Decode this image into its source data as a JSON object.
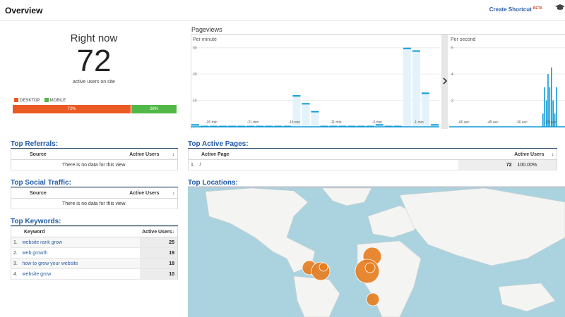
{
  "header": {
    "title": "Overview",
    "shortcut_label": "Create Shortcut",
    "shortcut_badge": "BETA"
  },
  "right_now": {
    "title": "Right now",
    "value": "72",
    "subtitle": "active users on site",
    "legend": [
      {
        "label": "DESKTOP",
        "color": "#ec5a24"
      },
      {
        "label": "MOBILE",
        "color": "#51b747"
      }
    ],
    "split": [
      {
        "label": "72%",
        "fraction": 0.72,
        "color": "#ec5a24"
      },
      {
        "label": "28%",
        "fraction": 0.28,
        "color": "#51b747"
      }
    ]
  },
  "pageviews": {
    "title": "Pageviews",
    "per_minute": {
      "label": "Per minute",
      "y_ticks": [
        "30",
        "20",
        "10"
      ],
      "x_ticks": [
        "-26 min",
        "-21 min",
        "-16 min",
        "-11 min",
        "-6 min",
        "-1 min"
      ],
      "ylim": [
        0,
        35
      ],
      "values": [
        1,
        0,
        0,
        0,
        0,
        0,
        0,
        0,
        0,
        0,
        0,
        12,
        9,
        6,
        0,
        0,
        0,
        0,
        0,
        0,
        1,
        0,
        0,
        30,
        29,
        13,
        1
      ]
    },
    "per_second": {
      "label": "Per second",
      "y_ticks": [
        "6",
        "4",
        "2"
      ],
      "x_ticks": [
        "-60 sec",
        "-45 sec",
        "-30 sec",
        "-15 sec"
      ],
      "ylim": [
        0,
        7
      ],
      "values": [
        1,
        3,
        2,
        4,
        3,
        4.5,
        2,
        1,
        3
      ]
    }
  },
  "top_referrals": {
    "title": "Top Referrals:",
    "columns": [
      "Source",
      "Active Users"
    ],
    "empty": "There is no data for this view."
  },
  "top_social": {
    "title": "Top Social Traffic:",
    "columns": [
      "Source",
      "Active Users"
    ],
    "empty": "There is no data for this view."
  },
  "top_keywords": {
    "title": "Top Keywords:",
    "columns": [
      "Keyword",
      "Active Users"
    ],
    "rows": [
      {
        "n": "1.",
        "keyword": "website rank grow",
        "users": "25"
      },
      {
        "n": "2.",
        "keyword": "web growth",
        "users": "19"
      },
      {
        "n": "3.",
        "keyword": "how to grow your website",
        "users": "18"
      },
      {
        "n": "4.",
        "keyword": "website grow",
        "users": "10"
      }
    ]
  },
  "top_pages": {
    "title": "Top Active Pages:",
    "columns": [
      "Active Page",
      "Active Users"
    ],
    "rows": [
      {
        "n": "1.",
        "page": "/",
        "users": "72",
        "pct": "100.00%"
      }
    ]
  },
  "top_locations": {
    "title": "Top Locations:"
  },
  "colors": {
    "accent": "#1f5aa8",
    "bar": "#0f9bd7",
    "bubble": "#e67e22"
  }
}
